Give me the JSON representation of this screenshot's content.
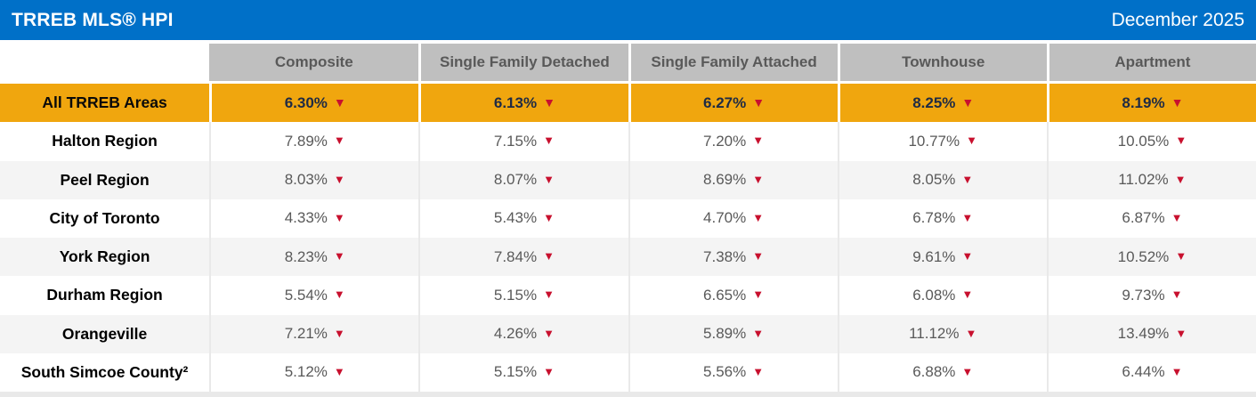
{
  "header": {
    "title": "TRREB MLS® HPI",
    "date": "December 2025"
  },
  "table": {
    "columns": [
      "Composite",
      "Single Family Detached",
      "Single Family Attached",
      "Townhouse",
      "Apartment"
    ],
    "trend_indicator": "▼",
    "rows": [
      {
        "region": "All TRREB Areas",
        "values": [
          "6.30%",
          "6.13%",
          "6.27%",
          "8.25%",
          "8.19%"
        ]
      },
      {
        "region": "Halton Region",
        "values": [
          "7.89%",
          "7.15%",
          "7.20%",
          "10.77%",
          "10.05%"
        ]
      },
      {
        "region": "Peel Region",
        "values": [
          "8.03%",
          "8.07%",
          "8.69%",
          "8.05%",
          "11.02%"
        ]
      },
      {
        "region": "City of Toronto",
        "values": [
          "4.33%",
          "5.43%",
          "4.70%",
          "6.78%",
          "6.87%"
        ]
      },
      {
        "region": "York Region",
        "values": [
          "8.23%",
          "7.84%",
          "7.38%",
          "9.61%",
          "10.52%"
        ]
      },
      {
        "region": "Durham Region",
        "values": [
          "5.54%",
          "5.15%",
          "6.65%",
          "6.08%",
          "9.73%"
        ]
      },
      {
        "region": "Orangeville",
        "values": [
          "7.21%",
          "4.26%",
          "5.89%",
          "11.12%",
          "13.49%"
        ]
      },
      {
        "region": "South Simcoe County²",
        "values": [
          "5.12%",
          "5.15%",
          "5.56%",
          "6.88%",
          "6.44%"
        ]
      }
    ]
  },
  "colors": {
    "titlebar_blue": "#0070C8",
    "highlight_orange": "#F0A60E",
    "column_header_gray": "#BFBFBF",
    "column_header_text": "#595959",
    "value_text_gray": "#595959",
    "highlight_value_navy": "#1F2B44",
    "trend_arrow_red": "#C8102E",
    "stripe_gray": "#F4F4F4"
  },
  "chart_data": {
    "type": "table",
    "title": "TRREB MLS® HPI",
    "date": "December 2025",
    "columns": [
      "Composite",
      "Single Family Detached",
      "Single Family Attached",
      "Townhouse",
      "Apartment"
    ],
    "rows": [
      {
        "region": "All TRREB Areas",
        "values_pct": [
          6.3,
          6.13,
          6.27,
          8.25,
          8.19
        ],
        "trend": "down"
      },
      {
        "region": "Halton Region",
        "values_pct": [
          7.89,
          7.15,
          7.2,
          10.77,
          10.05
        ],
        "trend": "down"
      },
      {
        "region": "Peel Region",
        "values_pct": [
          8.03,
          8.07,
          8.69,
          8.05,
          11.02
        ],
        "trend": "down"
      },
      {
        "region": "City of Toronto",
        "values_pct": [
          4.33,
          5.43,
          4.7,
          6.78,
          6.87
        ],
        "trend": "down"
      },
      {
        "region": "York Region",
        "values_pct": [
          8.23,
          7.84,
          7.38,
          9.61,
          10.52
        ],
        "trend": "down"
      },
      {
        "region": "Durham Region",
        "values_pct": [
          5.54,
          5.15,
          6.65,
          6.08,
          9.73
        ],
        "trend": "down"
      },
      {
        "region": "Orangeville",
        "values_pct": [
          7.21,
          4.26,
          5.89,
          11.12,
          13.49
        ],
        "trend": "down"
      },
      {
        "region": "South Simcoe County²",
        "values_pct": [
          5.12,
          5.15,
          5.56,
          6.88,
          6.44
        ],
        "trend": "down"
      }
    ]
  }
}
